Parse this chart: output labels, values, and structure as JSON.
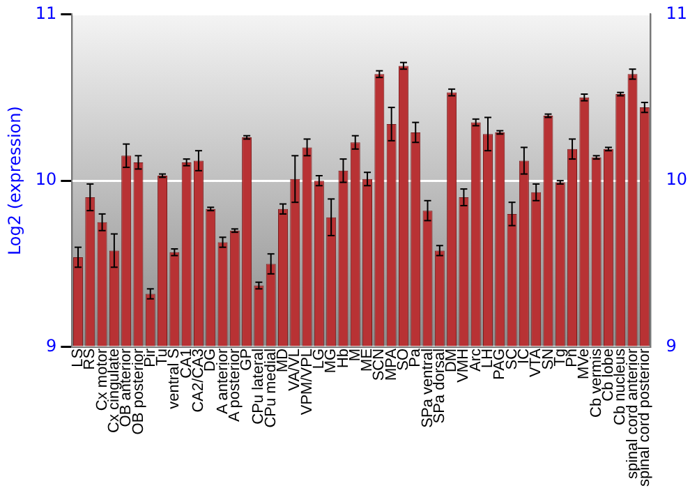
{
  "chart_data": {
    "type": "bar",
    "ylabel": "Log2 (expression)",
    "categories": [
      "LS",
      "RS",
      "Cx motor",
      "Cx cingulate",
      "OB anterior",
      "OB posterior",
      "Pir",
      "Tu",
      "ventral S",
      "CA1",
      "CA2/CA3",
      "DG",
      "A anterior",
      "A posterior",
      "GP",
      "CPu lateral",
      "CPu medial",
      "MD",
      "VA/VL",
      "VPM/VPL",
      "LG",
      "MG",
      "Hb",
      "M",
      "ME",
      "SCN",
      "MPA",
      "SO",
      "Pa",
      "SPa ventral",
      "SPa dorsal",
      "DM",
      "VMH",
      "Arc",
      "LH",
      "PAG",
      "SC",
      "IC",
      "VTA",
      "SN",
      "Tg",
      "Pn",
      "MVe",
      "Cb vermis",
      "Cb lobe",
      "Cb nucleus",
      "spinal cord anterior",
      "spinal cord posterior"
    ],
    "values": [
      9.54,
      9.9,
      9.75,
      9.58,
      10.15,
      10.11,
      9.32,
      10.03,
      9.57,
      10.11,
      10.12,
      9.83,
      9.63,
      9.7,
      10.26,
      9.37,
      9.5,
      9.83,
      10.01,
      10.2,
      10.0,
      9.78,
      10.06,
      10.23,
      10.01,
      10.64,
      10.34,
      10.69,
      10.29,
      9.82,
      9.58,
      10.53,
      9.9,
      10.35,
      10.28,
      10.29,
      9.8,
      10.12,
      9.93,
      10.39,
      9.99,
      10.19,
      10.5,
      10.14,
      10.19,
      10.52,
      10.64,
      10.44
    ],
    "errors": [
      0.06,
      0.08,
      0.05,
      0.1,
      0.07,
      0.04,
      0.03,
      0.01,
      0.02,
      0.02,
      0.06,
      0.01,
      0.03,
      0.01,
      0.01,
      0.02,
      0.06,
      0.03,
      0.14,
      0.05,
      0.03,
      0.11,
      0.07,
      0.04,
      0.04,
      0.02,
      0.1,
      0.02,
      0.06,
      0.06,
      0.03,
      0.02,
      0.05,
      0.02,
      0.1,
      0.01,
      0.07,
      0.08,
      0.05,
      0.01,
      0.01,
      0.06,
      0.02,
      0.01,
      0.01,
      0.01,
      0.03,
      0.03
    ],
    "color": "#b83234",
    "ylim": [
      9,
      11
    ],
    "yticks": [
      9,
      10,
      11
    ],
    "y2lim": [
      9,
      11
    ],
    "y2ticks": [
      9,
      10,
      11
    ],
    "grid": "y",
    "legend": false
  }
}
